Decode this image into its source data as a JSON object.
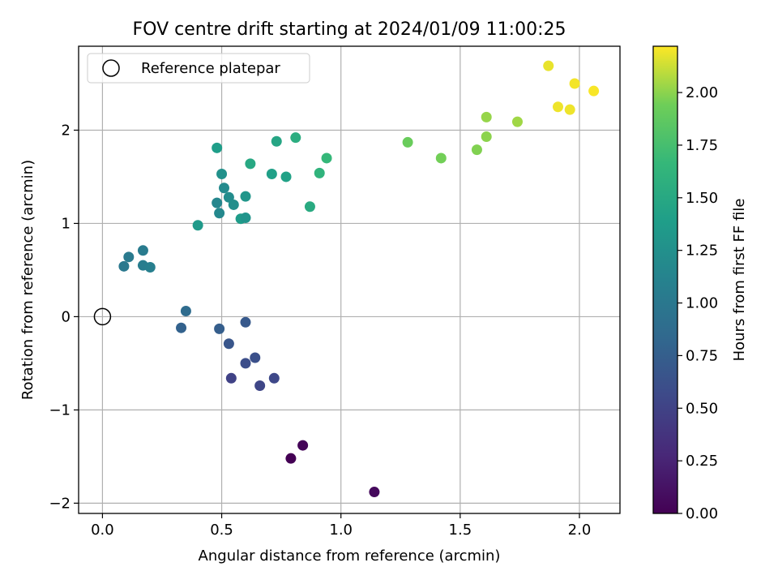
{
  "chart_data": {
    "type": "scatter",
    "title": "FOV centre drift starting at 2024/01/09 11:00:25",
    "xlabel": "Angular distance from reference (arcmin)",
    "ylabel": "Rotation from reference (arcmin)",
    "xlim": [
      -0.1,
      2.17
    ],
    "ylim": [
      -2.11,
      2.9
    ],
    "xticks": [
      0.0,
      0.5,
      1.0,
      1.5,
      2.0
    ],
    "xtick_labels": [
      "0.0",
      "0.5",
      "1.0",
      "1.5",
      "2.0"
    ],
    "yticks": [
      -2,
      -1,
      0,
      1,
      2
    ],
    "ytick_labels": [
      "−2",
      "−1",
      "0",
      "1",
      "2"
    ],
    "grid": true,
    "legend": {
      "position": "top-left",
      "label": "Reference platepar"
    },
    "reference_point": {
      "x": 0.0,
      "y": 0.0
    },
    "colorbar": {
      "label": "Hours from first FF file",
      "colormap": "viridis",
      "range": [
        0.0,
        2.22
      ],
      "ticks": [
        0.0,
        0.25,
        0.5,
        0.75,
        1.0,
        1.25,
        1.5,
        1.75,
        2.0
      ],
      "tick_labels": [
        "0.00",
        "0.25",
        "0.50",
        "0.75",
        "1.00",
        "1.25",
        "1.50",
        "1.75",
        "2.00"
      ]
    },
    "points": [
      {
        "x": 0.79,
        "y": -1.52,
        "c": 0.0
      },
      {
        "x": 0.84,
        "y": -1.38,
        "c": 0.03
      },
      {
        "x": 1.14,
        "y": -1.88,
        "c": 0.06
      },
      {
        "x": 0.54,
        "y": -0.66,
        "c": 0.5
      },
      {
        "x": 0.66,
        "y": -0.74,
        "c": 0.53
      },
      {
        "x": 0.72,
        "y": -0.66,
        "c": 0.55
      },
      {
        "x": 0.6,
        "y": -0.5,
        "c": 0.6
      },
      {
        "x": 0.64,
        "y": -0.44,
        "c": 0.62
      },
      {
        "x": 0.53,
        "y": -0.29,
        "c": 0.67
      },
      {
        "x": 0.6,
        "y": -0.06,
        "c": 0.7
      },
      {
        "x": 0.49,
        "y": -0.13,
        "c": 0.74
      },
      {
        "x": 0.33,
        "y": -0.12,
        "c": 0.78
      },
      {
        "x": 0.35,
        "y": 0.06,
        "c": 0.88
      },
      {
        "x": 0.09,
        "y": 0.54,
        "c": 1.0
      },
      {
        "x": 0.11,
        "y": 0.64,
        "c": 1.02
      },
      {
        "x": 0.17,
        "y": 0.71,
        "c": 1.04
      },
      {
        "x": 0.17,
        "y": 0.55,
        "c": 1.06
      },
      {
        "x": 0.2,
        "y": 0.53,
        "c": 1.08
      },
      {
        "x": 0.4,
        "y": 0.98,
        "c": 1.35
      },
      {
        "x": 0.48,
        "y": 1.22,
        "c": 1.15
      },
      {
        "x": 0.49,
        "y": 1.11,
        "c": 1.17
      },
      {
        "x": 0.51,
        "y": 1.38,
        "c": 1.19
      },
      {
        "x": 0.53,
        "y": 1.28,
        "c": 1.21
      },
      {
        "x": 0.55,
        "y": 1.2,
        "c": 1.23
      },
      {
        "x": 0.5,
        "y": 1.53,
        "c": 1.26
      },
      {
        "x": 0.58,
        "y": 1.05,
        "c": 1.37
      },
      {
        "x": 0.6,
        "y": 1.06,
        "c": 1.29
      },
      {
        "x": 0.6,
        "y": 1.29,
        "c": 1.31
      },
      {
        "x": 0.48,
        "y": 1.81,
        "c": 1.39
      },
      {
        "x": 0.62,
        "y": 1.64,
        "c": 1.5
      },
      {
        "x": 0.71,
        "y": 1.53,
        "c": 1.41
      },
      {
        "x": 0.77,
        "y": 1.5,
        "c": 1.43
      },
      {
        "x": 0.73,
        "y": 1.88,
        "c": 1.47
      },
      {
        "x": 0.81,
        "y": 1.92,
        "c": 1.55
      },
      {
        "x": 0.87,
        "y": 1.18,
        "c": 1.52
      },
      {
        "x": 0.91,
        "y": 1.54,
        "c": 1.62
      },
      {
        "x": 0.94,
        "y": 1.7,
        "c": 1.66
      },
      {
        "x": 1.28,
        "y": 1.87,
        "c": 1.92
      },
      {
        "x": 1.42,
        "y": 1.7,
        "c": 1.95
      },
      {
        "x": 1.57,
        "y": 1.79,
        "c": 1.98
      },
      {
        "x": 1.61,
        "y": 1.93,
        "c": 2.0
      },
      {
        "x": 1.61,
        "y": 2.14,
        "c": 2.02
      },
      {
        "x": 1.74,
        "y": 2.09,
        "c": 2.04
      },
      {
        "x": 1.87,
        "y": 2.69,
        "c": 2.18
      },
      {
        "x": 1.91,
        "y": 2.25,
        "c": 2.19
      },
      {
        "x": 1.96,
        "y": 2.22,
        "c": 2.19
      },
      {
        "x": 1.98,
        "y": 2.5,
        "c": 2.2
      },
      {
        "x": 2.06,
        "y": 2.42,
        "c": 2.21
      }
    ]
  }
}
